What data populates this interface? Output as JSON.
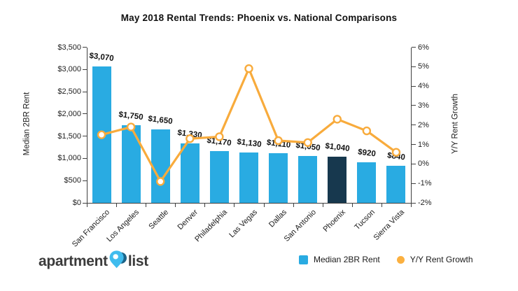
{
  "title": "May 2018 Rental Trends: Phoenix vs. National Comparisons",
  "chart_data": {
    "type": "bar+line combo",
    "categories": [
      "San Francisco",
      "Los Angeles",
      "Seattle",
      "Denver",
      "Philadelphia",
      "Las Vegas",
      "Dallas",
      "San Antonio",
      "Phoenix",
      "Tucson",
      "Sierra Vista"
    ],
    "series": [
      {
        "name": "Median 2BR Rent",
        "type": "bar",
        "axis": "left",
        "values": [
          3070,
          1750,
          1650,
          1330,
          1170,
          1130,
          1110,
          1050,
          1040,
          920,
          840
        ],
        "data_labels": [
          "$3,070",
          "$1,750",
          "$1,650",
          "$1,330",
          "$1,170",
          "$1,130",
          "$1,110",
          "$1,050",
          "$1,040",
          "$920",
          "$840"
        ]
      },
      {
        "name": "Y/Y Rent Growth",
        "type": "line",
        "axis": "right",
        "values": [
          1.5,
          1.9,
          -0.9,
          1.3,
          1.4,
          4.9,
          1.2,
          1.1,
          2.3,
          1.7,
          0.6
        ]
      }
    ],
    "left_axis": {
      "label": "Median 2BR Rent",
      "min": 0,
      "max": 3500,
      "step": 500,
      "tick_labels": [
        "$0",
        "$500",
        "$1,000",
        "$1,500",
        "$2,000",
        "$2,500",
        "$3,000",
        "$3,500"
      ]
    },
    "right_axis": {
      "label": "Y/Y Rent Growth",
      "min": -2,
      "max": 6,
      "step": 1,
      "tick_labels": [
        "-2%",
        "-1%",
        "0%",
        "1%",
        "2%",
        "3%",
        "4%",
        "5%",
        "6%"
      ]
    },
    "highlight_category": "Phoenix",
    "grid": false,
    "legend_position": "bottom-right",
    "colors": {
      "bar": "#29ABE2",
      "bar_highlight": "#17384E",
      "line": "#F8AB3C",
      "marker_fill": "#FFFFFF",
      "axis": "#3F3F3F"
    }
  },
  "legend": {
    "items": [
      {
        "label": "Median 2BR Rent",
        "swatch": "square",
        "color": "#29ABE2"
      },
      {
        "label": "Y/Y Rent Growth",
        "swatch": "circle",
        "color": "#FBB040"
      }
    ]
  },
  "logo": {
    "text_left": "apartment",
    "text_right": "list",
    "pin_light": "#3FBCEE",
    "pin_dark": "#1D6387"
  }
}
